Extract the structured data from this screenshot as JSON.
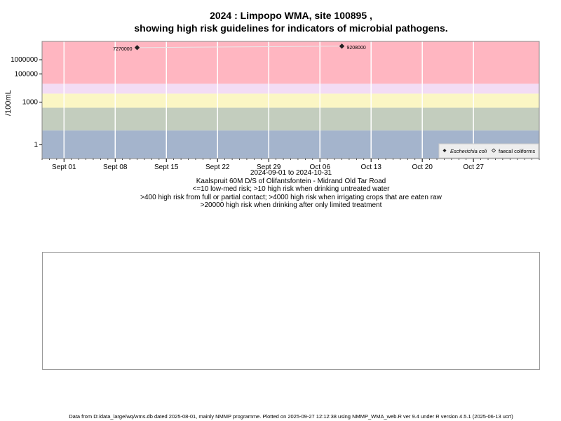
{
  "title_line1": "2024 : Limpopo WMA, site 100895 ,",
  "title_line2": "showing high risk guidelines for indicators of microbial pathogens.",
  "chart_data": {
    "type": "scatter",
    "y_scale": "log10",
    "ylabel": "/100mL",
    "y_ticks": [
      1,
      1000,
      100000,
      1000000
    ],
    "y_tick_labels": [
      "1",
      "1000",
      "100000",
      "1000000"
    ],
    "ylim": [
      0.1,
      20000000
    ],
    "xlim": [
      "2024-08-29",
      "2024-11-05"
    ],
    "x_ticks": [
      "2024-09-01",
      "2024-09-08",
      "2024-09-15",
      "2024-09-22",
      "2024-09-29",
      "2024-10-06",
      "2024-10-13",
      "2024-10-20",
      "2024-10-27"
    ],
    "x_tick_labels": [
      "Sept 01",
      "Sept 08",
      "Sept 15",
      "Sept 22",
      "Sept 29",
      "Oct 06",
      "Oct 13",
      "Oct 20",
      "Oct 27"
    ],
    "risk_bands": [
      {
        "from": 0.1,
        "to": 10,
        "color": "#a4b4cc"
      },
      {
        "from": 10,
        "to": 400,
        "color": "#c3cdbe"
      },
      {
        "from": 400,
        "to": 4000,
        "color": "#fbf6c4"
      },
      {
        "from": 4000,
        "to": 20000,
        "color": "#f3dcf4"
      },
      {
        "from": 20000,
        "to": 20000000,
        "color": "#ffb6c1"
      }
    ],
    "series": [
      {
        "name": "Escherichia coli",
        "marker": "filled-diamond",
        "points": [
          {
            "x": "2024-09-11",
            "y": 7270000,
            "label": "7270000"
          },
          {
            "x": "2024-10-09",
            "y": 9208000,
            "label": "9208000"
          }
        ]
      },
      {
        "name": "faecal coliforms",
        "marker": "open-diamond",
        "points": []
      }
    ],
    "legend_position": "bottom-right"
  },
  "caption": {
    "date_range": "2024-09-01 to 2024-10-31",
    "site_name": "Kaalspruit 60M D/S of Olifantsfontein - Midrand Old Tar Road",
    "guideline1": "<=10 low-med risk; >10 high risk when drinking untreated water",
    "guideline2": ">400 high risk from full or partial contact; >4000 high risk when irrigating crops that are eaten raw",
    "guideline3": ">20000 high risk when drinking after only limited treatment"
  },
  "footer": "Data from D:/data_large/wq/wms.db dated 2025-08-01, mainly NMMP programme. Plotted on 2025-09-27 12:12:38 using NMMP_WMA_web.R ver 9.4 under R version 4.5.1 (2025-06-13 ucrt)"
}
